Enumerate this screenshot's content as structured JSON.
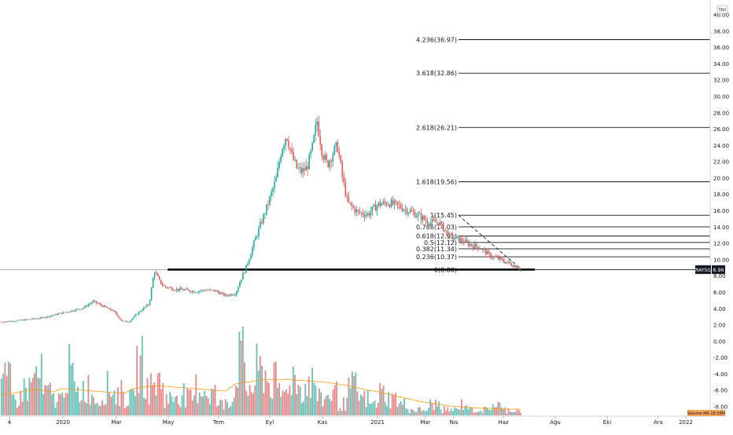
{
  "chart_data": {
    "type": "candlestick",
    "symbol_badge": "RAYSG",
    "last_price_label": "8.96",
    "currency_label": "TRY",
    "volume_label": "Volume MA  18.58M",
    "y_ticks": [
      "-8.00",
      "-6.00",
      "-4.00",
      "-2.00",
      "0.00",
      "2.00",
      "4.00",
      "6.00",
      "8.00",
      "10.00",
      "12.00",
      "14.00",
      "16.00",
      "18.00",
      "20.00",
      "22.00",
      "24.00",
      "26.00",
      "28.00",
      "30.00",
      "32.00",
      "34.00",
      "36.00",
      "38.00",
      "40.00"
    ],
    "x_ticks": [
      "4",
      "2020",
      "Mar",
      "May",
      "Tem",
      "Eyl",
      "Kas",
      "2021",
      "Mar",
      "Nis",
      "Haz",
      "Ağu",
      "Eki",
      "Ara",
      "2022"
    ],
    "ylim": [
      -9,
      41
    ],
    "fib_levels": [
      {
        "label": "4.236(36.97)",
        "value": 36.97
      },
      {
        "label": "3.618(32.86)",
        "value": 32.86
      },
      {
        "label": "2.618(26.21)",
        "value": 26.21
      },
      {
        "label": "1.618(19.56)",
        "value": 19.56
      },
      {
        "label": "1(15.45)",
        "value": 15.45
      },
      {
        "label": "0.786(14.03)",
        "value": 14.03
      },
      {
        "label": "0.618(12.91)",
        "value": 12.91
      },
      {
        "label": "0.5(12.12)",
        "value": 12.12
      },
      {
        "label": "0.382(11.34)",
        "value": 11.34
      },
      {
        "label": "0.236(10.37)",
        "value": 10.37
      },
      {
        "label": "0(8.80)",
        "value": 8.8
      }
    ],
    "support_line": {
      "value": 8.8
    },
    "price_path": [
      [
        0,
        2.4
      ],
      [
        2,
        2.6
      ],
      [
        4,
        2.9
      ],
      [
        6,
        3.5
      ],
      [
        8,
        4.1
      ],
      [
        9,
        4.9
      ],
      [
        10,
        4.3
      ],
      [
        11,
        3.7
      ],
      [
        11.8,
        2.5
      ],
      [
        12.5,
        2.4
      ],
      [
        13.5,
        3.6
      ],
      [
        14.5,
        4.6
      ],
      [
        15,
        8.7
      ],
      [
        15.5,
        7.4
      ],
      [
        16,
        6.7
      ],
      [
        17,
        6.4
      ],
      [
        18,
        6.3
      ],
      [
        19,
        6.1
      ],
      [
        20,
        6.3
      ],
      [
        21,
        6.2
      ],
      [
        22,
        5.6
      ],
      [
        23,
        5.9
      ],
      [
        23.5,
        7.6
      ],
      [
        24,
        9.0
      ],
      [
        25,
        12.8
      ],
      [
        26,
        16.2
      ],
      [
        27,
        20.0
      ],
      [
        27.5,
        23.6
      ],
      [
        28,
        25.4
      ],
      [
        28.5,
        22.8
      ],
      [
        29,
        21.2
      ],
      [
        29.5,
        20.8
      ],
      [
        30,
        21.3
      ],
      [
        30.5,
        23.5
      ],
      [
        31,
        27.0
      ],
      [
        31.5,
        23.2
      ],
      [
        32,
        21.6
      ],
      [
        32.5,
        23.0
      ],
      [
        33,
        24.0
      ],
      [
        33.5,
        20.0
      ],
      [
        34,
        17.0
      ],
      [
        35,
        15.8
      ],
      [
        36,
        15.6
      ],
      [
        37,
        16.8
      ],
      [
        38,
        17.0
      ],
      [
        39,
        16.6
      ],
      [
        40,
        16.0
      ],
      [
        41,
        15.4
      ],
      [
        42,
        14.6
      ],
      [
        43,
        14.6
      ],
      [
        44,
        12.8
      ],
      [
        45,
        12.5
      ],
      [
        46,
        11.9
      ],
      [
        47,
        11.5
      ],
      [
        48,
        10.5
      ],
      [
        49,
        10.0
      ],
      [
        50,
        9.5
      ],
      [
        51,
        8.96
      ]
    ],
    "volume_values": [
      0.6,
      0.3,
      0.5,
      0.7,
      0.4,
      0.3,
      0.8,
      0.4,
      0.5,
      0.3,
      0.5,
      0.4,
      0.3,
      0.9,
      0.5,
      0.6,
      0.3,
      0.4,
      0.3,
      0.5,
      0.4,
      0.2,
      0.3,
      1.0,
      0.5,
      0.8,
      0.6,
      0.4,
      0.7,
      0.5,
      0.6,
      0.3,
      0.4,
      0.2,
      0.5,
      0.3,
      0.2,
      0.4,
      0.3,
      0.2,
      0.1,
      0.1,
      0.2,
      0.1,
      0.1,
      0.2,
      0.1,
      0.1,
      0.2,
      0.1,
      0.1,
      0.1
    ],
    "volume_ma": [
      0.25,
      0.28,
      0.3,
      0.33,
      0.32,
      0.3,
      0.34,
      0.33,
      0.32,
      0.31,
      0.3,
      0.29,
      0.28,
      0.34,
      0.36,
      0.38,
      0.37,
      0.36,
      0.35,
      0.34,
      0.33,
      0.32,
      0.31,
      0.4,
      0.42,
      0.44,
      0.46,
      0.45,
      0.46,
      0.45,
      0.44,
      0.43,
      0.42,
      0.4,
      0.38,
      0.35,
      0.32,
      0.3,
      0.27,
      0.24,
      0.21,
      0.18,
      0.16,
      0.14,
      0.12,
      0.11,
      0.1,
      0.09,
      0.09,
      0.08,
      0.08,
      0.08
    ]
  }
}
